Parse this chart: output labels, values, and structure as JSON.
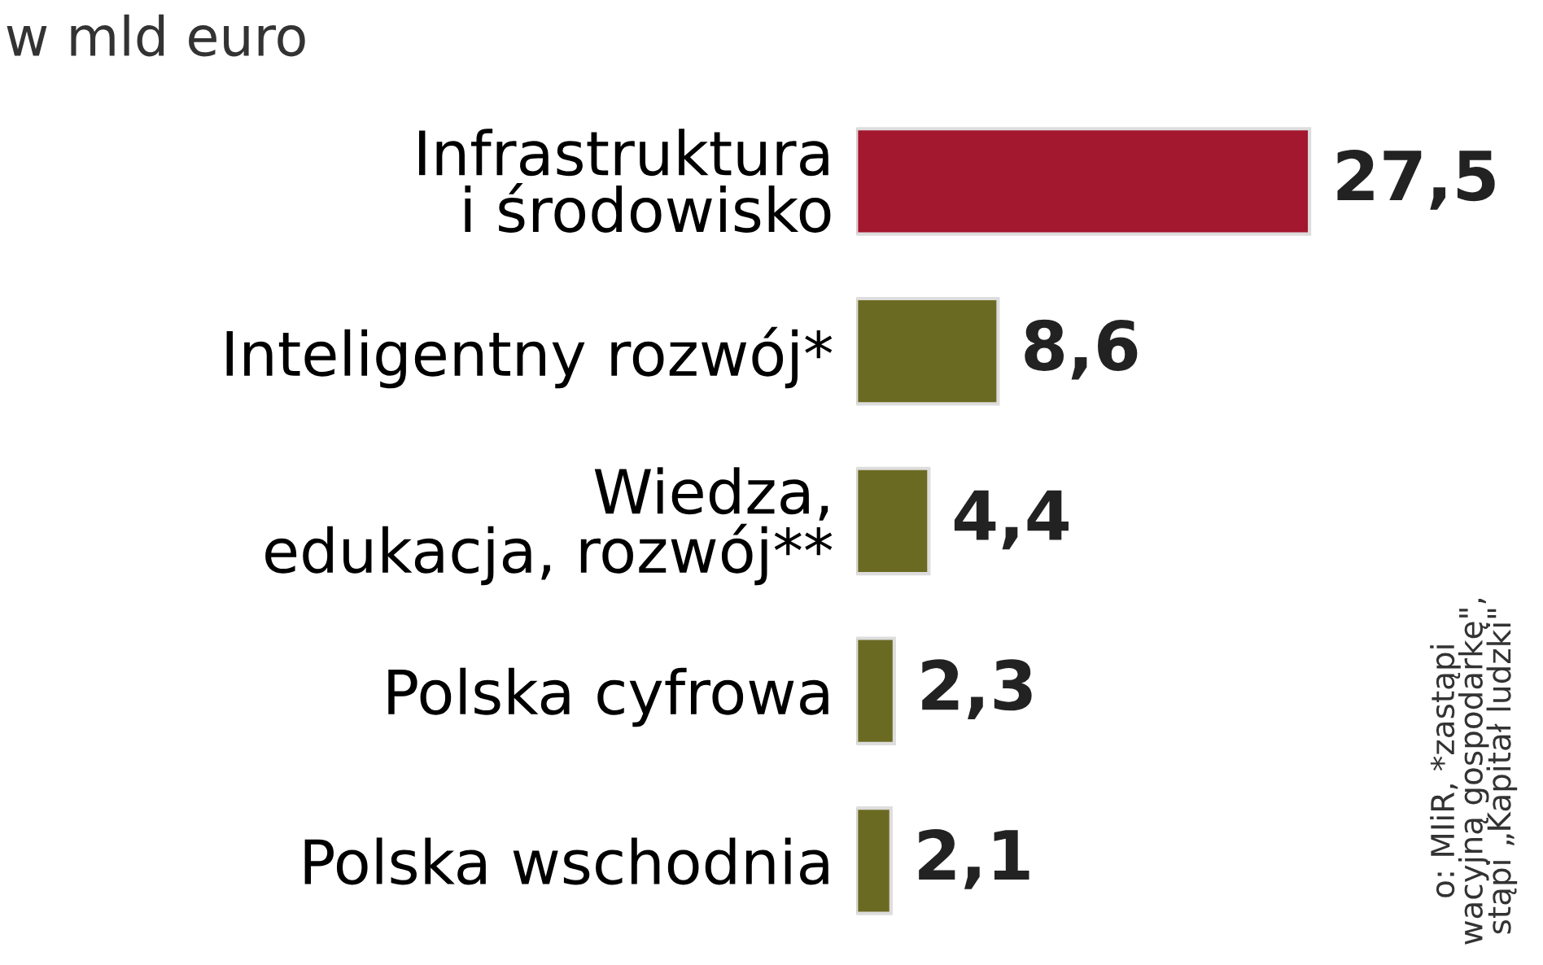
{
  "chart_data": {
    "type": "bar",
    "orientation": "horizontal",
    "subtitle": "w mld euro",
    "categories": [
      "Infrastruktura\ni środowisko",
      "Inteligentny rozwój*",
      "Wiedza,\nedukacja, rozwój**",
      "Polska cyfrowa",
      "Polska wschodnia"
    ],
    "values": [
      27.5,
      8.6,
      4.4,
      2.3,
      2.1
    ],
    "value_labels": [
      "27,5",
      "8,6",
      "4,4",
      "2,3",
      "2,1"
    ],
    "colors": [
      "#a3172f",
      "#6b6a22",
      "#6b6a22",
      "#6b6a22",
      "#6b6a22"
    ],
    "tick_labels": "y",
    "grid": false,
    "legend": false,
    "annotations": [
      "o: MIiR, *zastąpi\nwacyjną gospodarkę\",\nstąpi „Kapitał ludzki\""
    ]
  }
}
